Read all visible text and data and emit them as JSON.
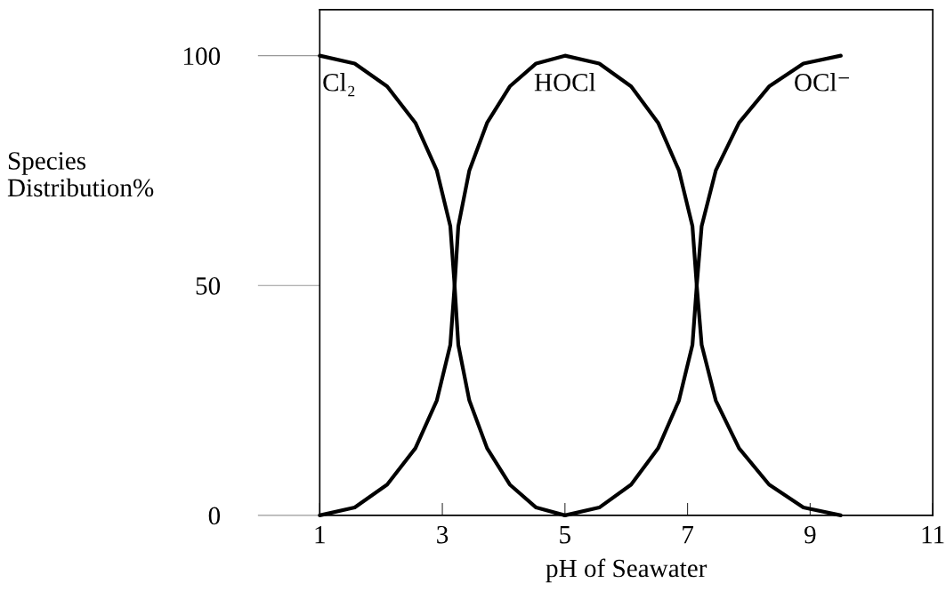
{
  "chart_data": {
    "type": "line",
    "xlabel": "pH of Seawater",
    "ylabel": "Species\nDistribution%",
    "xlim": [
      1,
      11
    ],
    "xticks": [
      1,
      3,
      5,
      7,
      9,
      11
    ],
    "ylim": [
      0,
      110
    ],
    "yticks": [
      0,
      50,
      100
    ],
    "grid": false,
    "legend": false,
    "series": [
      {
        "name": "Cl₂",
        "color": "#000000",
        "x": [
          1,
          1.57,
          2.1,
          2.56,
          2.91,
          3.13,
          3.2,
          3.26,
          3.44,
          3.73,
          4.1,
          4.53,
          5
        ],
        "values": [
          100,
          98.3,
          93.3,
          85.4,
          75,
          62.9,
          50,
          37.1,
          25,
          14.6,
          6.7,
          1.7,
          0
        ]
      },
      {
        "name": "HOCl",
        "color": "#000000",
        "x": [
          1,
          1.57,
          2.1,
          2.56,
          2.91,
          3.13,
          3.2,
          3.26,
          3.44,
          3.73,
          4.1,
          4.53,
          5,
          5.56,
          6.08,
          6.52,
          6.86,
          7.08,
          7.15,
          7.23,
          7.46,
          7.84,
          8.33,
          8.89,
          9.5
        ],
        "values": [
          0,
          1.7,
          6.7,
          14.6,
          25,
          37.1,
          50,
          62.9,
          75,
          85.4,
          93.3,
          98.3,
          100,
          98.3,
          93.3,
          85.4,
          75,
          62.9,
          50,
          37.1,
          25,
          14.6,
          6.7,
          1.7,
          0
        ]
      },
      {
        "name": "OCl⁻",
        "color": "#000000",
        "x": [
          5,
          5.56,
          6.08,
          6.52,
          6.86,
          7.08,
          7.15,
          7.23,
          7.46,
          7.84,
          8.33,
          8.89,
          9.5
        ],
        "values": [
          0,
          1.7,
          6.7,
          14.6,
          25,
          37.1,
          50,
          62.9,
          75,
          85.4,
          93.3,
          98.3,
          100
        ]
      }
    ]
  }
}
